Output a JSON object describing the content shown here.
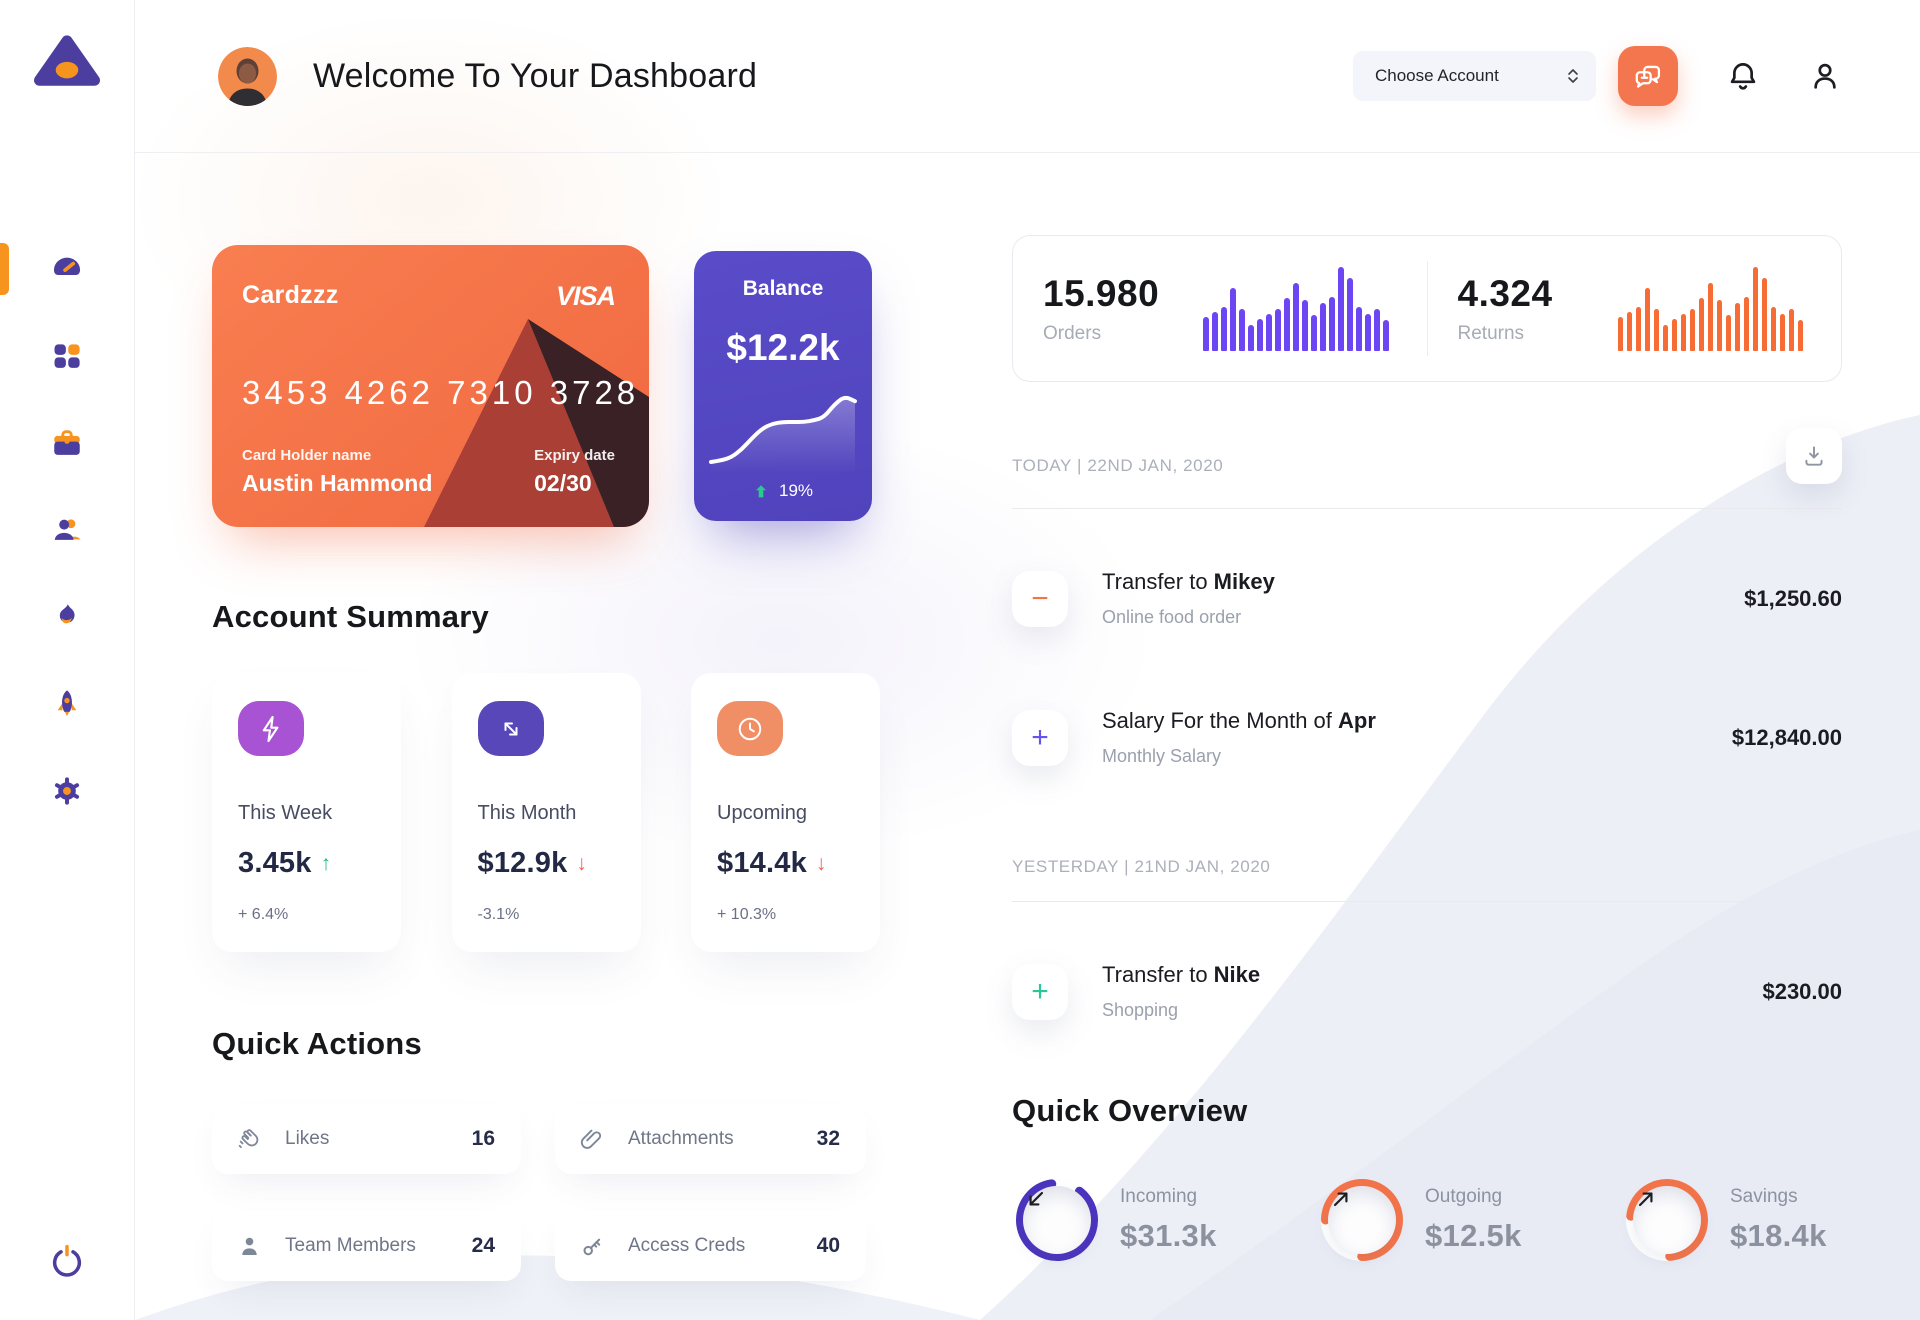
{
  "header": {
    "title": "Welcome To Your Dashboard",
    "account_selector_label": "Choose Account"
  },
  "credit_card": {
    "name": "Cardzzz",
    "brand": "VISA",
    "number": "3453 4262 7310 3728",
    "holder_label": "Card Holder name",
    "holder_name": "Austin Hammond",
    "expiry_label": "Expiry date",
    "expiry": "02/30"
  },
  "balance_card": {
    "label": "Balance",
    "value": "$12.2k",
    "change": "19%"
  },
  "stats": {
    "orders": {
      "value": "15.980",
      "label": "Orders"
    },
    "returns": {
      "value": "4.324",
      "label": "Returns"
    }
  },
  "chart_data": [
    {
      "type": "bar",
      "title": "Orders activity",
      "color": "#6B46F2",
      "values": [
        40,
        46,
        52,
        74,
        50,
        30,
        38,
        44,
        50,
        62,
        80,
        60,
        42,
        56,
        64,
        100,
        86,
        52,
        44,
        50,
        36
      ]
    },
    {
      "type": "bar",
      "title": "Returns activity",
      "color": "#F76B35",
      "values": [
        40,
        46,
        52,
        74,
        50,
        30,
        38,
        44,
        50,
        62,
        80,
        60,
        42,
        56,
        64,
        100,
        86,
        52,
        44,
        50,
        36
      ]
    },
    {
      "type": "line",
      "title": "Balance trend",
      "color": "#ffffff",
      "values": [
        10,
        12,
        16,
        26,
        40,
        52,
        58,
        60,
        60,
        60,
        62,
        66,
        82,
        92,
        86
      ]
    }
  ],
  "account_summary": {
    "title": "Account Summary",
    "cards": [
      {
        "label": "This Week",
        "value": "3.45k",
        "trend": "↑",
        "percent": "+ 6.4%",
        "icon": "lightning-icon",
        "icon_color": "#A753D4"
      },
      {
        "label": "This Month",
        "value": "$12.9k",
        "trend": "↓",
        "percent": "-3.1%",
        "icon": "transfer-arrows-icon",
        "icon_color": "#5847B8"
      },
      {
        "label": "Upcoming",
        "value": "$14.4k",
        "trend": "↓",
        "percent": "+ 10.3%",
        "icon": "clock-icon",
        "icon_color": "#F08E66"
      }
    ]
  },
  "quick_actions": {
    "title": "Quick Actions",
    "items": [
      {
        "label": "Likes",
        "count": "16",
        "icon": "clap-icon"
      },
      {
        "label": "Attachments",
        "count": "32",
        "icon": "paperclip-icon"
      },
      {
        "label": "Team Members",
        "count": "24",
        "icon": "person-icon"
      },
      {
        "label": "Access Creds",
        "count": "40",
        "icon": "key-icon"
      }
    ]
  },
  "transactions": {
    "groups": [
      {
        "date_label": "TODAY | 22ND JAN, 2020",
        "rows": [
          {
            "sign": "−",
            "sign_color": "#F4744A",
            "title": "Transfer to ",
            "title_bold": "Mikey",
            "subtitle": "Online food order",
            "amount": "$1,250.60"
          },
          {
            "sign": "+",
            "sign_color": "#6554E8",
            "title": "Salary For the Month of ",
            "title_bold": "Apr",
            "subtitle": "Monthly Salary",
            "amount": "$12,840.00"
          }
        ]
      },
      {
        "date_label": "YESTERDAY | 21ND JAN, 2020",
        "rows": [
          {
            "sign": "+",
            "sign_color": "#2BC79A",
            "title": "Transfer to ",
            "title_bold": "Nike",
            "subtitle": "Shopping",
            "amount": "$230.00"
          }
        ]
      }
    ]
  },
  "quick_overview": {
    "title": "Quick Overview",
    "items": [
      {
        "label": "Incoming",
        "value": "$31.3k",
        "progress": 87,
        "start_angle": -52,
        "color": "#4B33BE"
      },
      {
        "label": "Outgoing",
        "value": "$12.5k",
        "progress": 75,
        "start_angle": 180,
        "color": "#F4744A"
      },
      {
        "label": "Savings",
        "value": "$18.4k",
        "progress": 72,
        "start_angle": 186,
        "color": "#F4744A"
      }
    ]
  }
}
